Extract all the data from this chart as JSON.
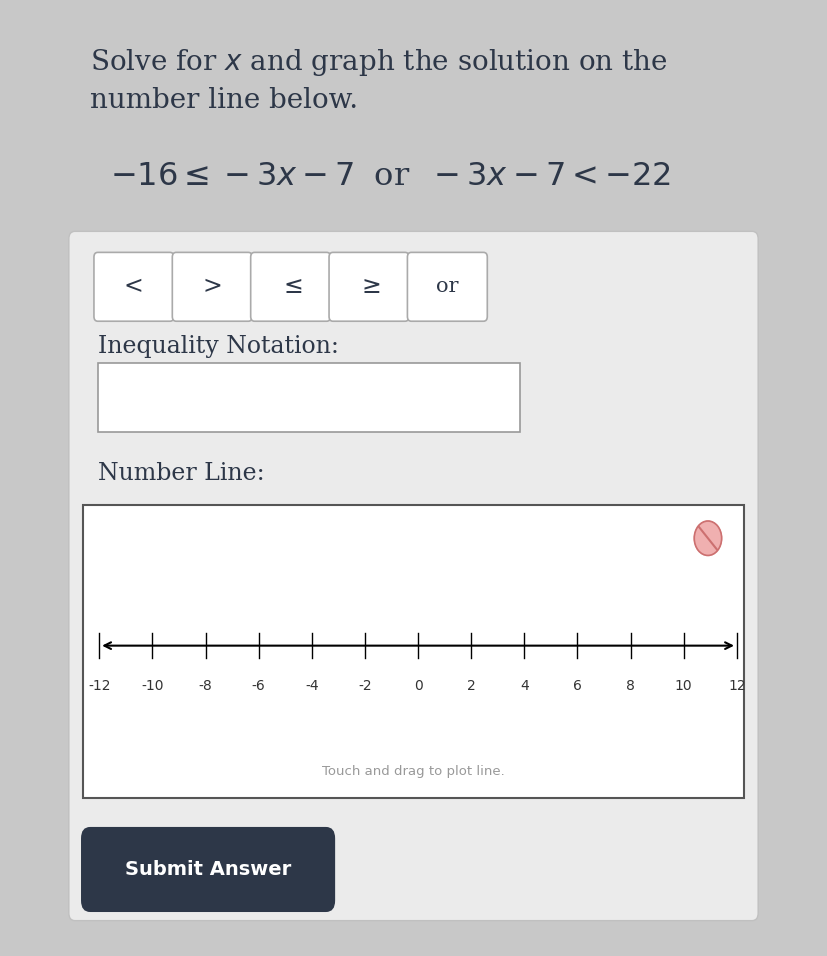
{
  "outer_bg": "#c8c8c8",
  "page_bg": "#ffffff",
  "panel_bg": "#ebebeb",
  "panel_border": "#c0c0c0",
  "button_bg": "#ffffff",
  "button_border": "#aaaaaa",
  "button_labels": [
    "<",
    ">",
    "≤",
    "≥",
    "or"
  ],
  "inequality_label": "Inequality Notation:",
  "number_line_label": "Number Line:",
  "number_line_ticks": [
    -12,
    -10,
    -8,
    -6,
    -4,
    -2,
    0,
    2,
    4,
    6,
    8,
    10,
    12
  ],
  "touch_drag_text": "Touch and drag to plot line.",
  "submit_text": "Submit Answer",
  "submit_bg": "#2d3748",
  "submit_text_color": "#ffffff",
  "text_color": "#2d3748",
  "input_box_bg": "#ffffff",
  "input_box_border": "#999999",
  "nl_box_bg": "#ffffff",
  "nl_box_border": "#555555",
  "cancel_fill": "#f0b0b0",
  "cancel_stroke": "#cc7070",
  "title_fontsize": 20,
  "eq_fontsize": 23,
  "label_fontsize": 17,
  "btn_fontsize": 17,
  "tick_fontsize": 10,
  "submit_fontsize": 14,
  "touch_fontsize": 9.5
}
